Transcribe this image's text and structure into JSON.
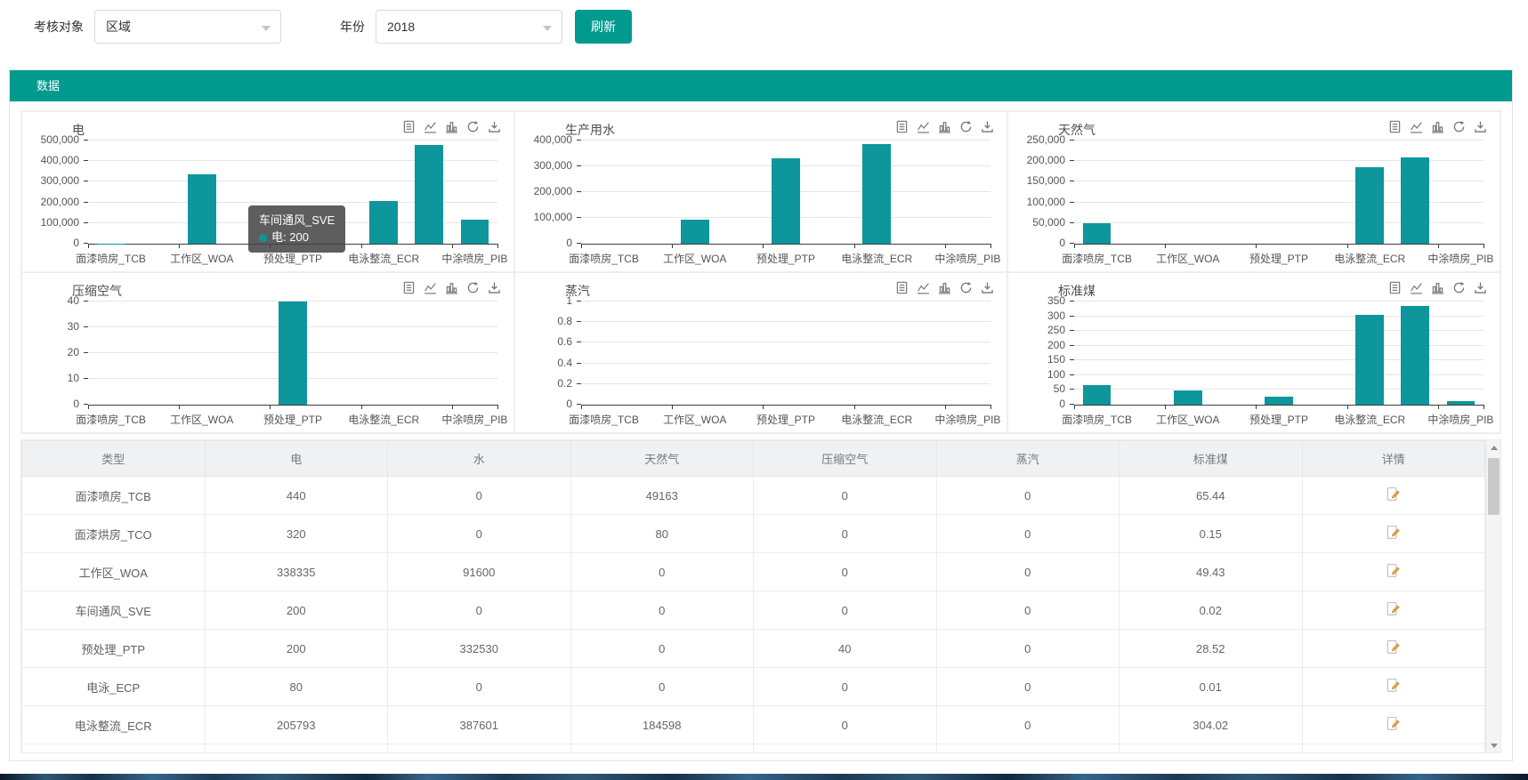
{
  "colors": {
    "accent": "#009a8f",
    "bar": "#0d969b"
  },
  "filters": {
    "target_label": "考核对象",
    "target_value": "区域",
    "year_label": "年份",
    "year_value": "2018",
    "refresh_label": "刷新"
  },
  "section": {
    "title": "数据"
  },
  "toolbox_icons": [
    "data-view-icon",
    "line-toggle-icon",
    "bar-toggle-icon",
    "restore-icon",
    "save-image-icon"
  ],
  "x_axis": {
    "n_slots": 9,
    "label_indices": [
      0,
      2,
      4,
      6,
      8
    ],
    "tick_labels": [
      "面漆喷房_TCB",
      "工作区_WOA",
      "预处理_PTP",
      "电泳整流_ECR",
      "中涂喷房_PIB"
    ]
  },
  "chart_data": [
    {
      "type": "bar",
      "title": "电",
      "ymax": 500000,
      "yticks": [
        "500,000",
        "400,000",
        "300,000",
        "200,000",
        "100,000",
        "0"
      ],
      "values": [
        440,
        320,
        338335,
        200,
        200,
        80,
        205793,
        480000,
        118000
      ]
    },
    {
      "type": "bar",
      "title": "生产用水",
      "ymax": 400000,
      "yticks": [
        "400,000",
        "300,000",
        "200,000",
        "100,000",
        "0"
      ],
      "values": [
        0,
        0,
        91600,
        0,
        332530,
        0,
        387601,
        0,
        0
      ]
    },
    {
      "type": "bar",
      "title": "天然气",
      "ymax": 250000,
      "yticks": [
        "250,000",
        "200,000",
        "150,000",
        "100,000",
        "50,000",
        "0"
      ],
      "values": [
        49163,
        80,
        0,
        0,
        0,
        0,
        184598,
        210000,
        0
      ]
    },
    {
      "type": "bar",
      "title": "压缩空气",
      "ymax": 40,
      "yticks": [
        "40",
        "30",
        "20",
        "10",
        "0"
      ],
      "values": [
        0,
        0,
        0,
        0,
        40,
        0,
        0,
        0,
        0
      ]
    },
    {
      "type": "bar",
      "title": "蒸汽",
      "ymax": 1,
      "yticks": [
        "1",
        "0.8",
        "0.6",
        "0.4",
        "0.2",
        "0"
      ],
      "values": [
        0,
        0,
        0,
        0,
        0,
        0,
        0,
        0,
        0
      ]
    },
    {
      "type": "bar",
      "title": "标准煤",
      "ymax": 350,
      "yticks": [
        "350",
        "300",
        "250",
        "200",
        "150",
        "100",
        "50",
        "0"
      ],
      "values": [
        65.44,
        0.15,
        49.43,
        0.02,
        28.52,
        0.01,
        304.02,
        335,
        12
      ]
    }
  ],
  "tooltip": {
    "title": "车间通风_SVE",
    "series_label": "电",
    "value": "200"
  },
  "table": {
    "headers": [
      "类型",
      "电",
      "水",
      "天然气",
      "压缩空气",
      "蒸汽",
      "标准煤",
      "详情"
    ],
    "rows": [
      {
        "cells": [
          "面漆喷房_TCB",
          "440",
          "0",
          "49163",
          "0",
          "0",
          "65.44"
        ]
      },
      {
        "cells": [
          "面漆烘房_TCO",
          "320",
          "0",
          "80",
          "0",
          "0",
          "0.15"
        ]
      },
      {
        "cells": [
          "工作区_WOA",
          "338335",
          "91600",
          "0",
          "0",
          "0",
          "49.43"
        ]
      },
      {
        "cells": [
          "车间通风_SVE",
          "200",
          "0",
          "0",
          "0",
          "0",
          "0.02"
        ]
      },
      {
        "cells": [
          "预处理_PTP",
          "200",
          "332530",
          "0",
          "40",
          "0",
          "28.52"
        ]
      },
      {
        "cells": [
          "电泳_ECP",
          "80",
          "0",
          "0",
          "0",
          "0",
          "0.01"
        ]
      },
      {
        "cells": [
          "电泳整流_ECR",
          "205793",
          "387601",
          "184598",
          "0",
          "0",
          "304.02"
        ]
      }
    ]
  }
}
